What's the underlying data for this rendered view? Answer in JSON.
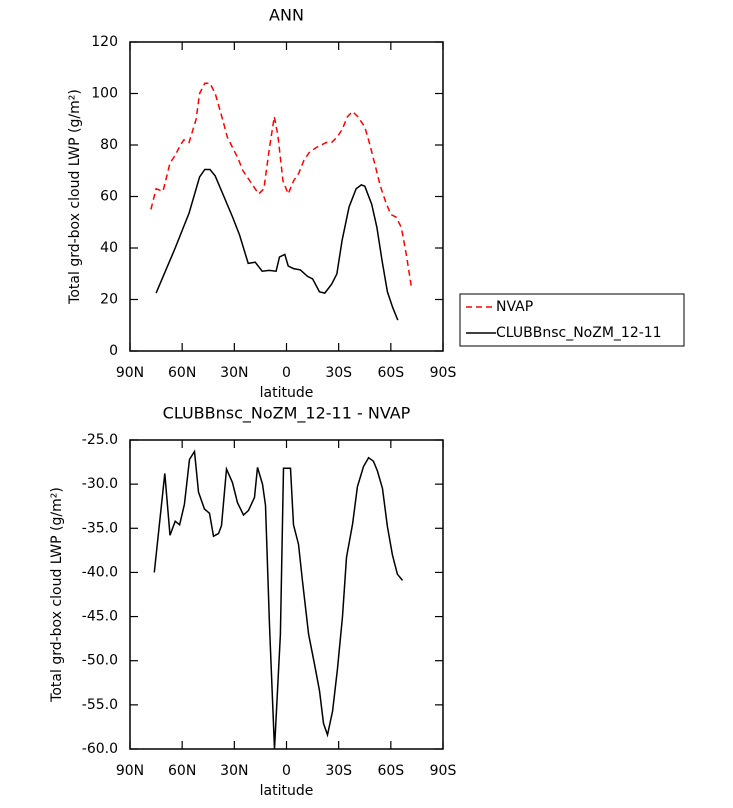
{
  "chart_data": [
    {
      "type": "line",
      "title": "ANN",
      "xlabel": "latitude",
      "ylabel": "Total grd-box cloud LWP (g/m²)",
      "xlim": [
        90,
        -90
      ],
      "xticks": [
        {
          "value": 90,
          "label": "90N"
        },
        {
          "value": 60,
          "label": "60N"
        },
        {
          "value": 30,
          "label": "30N"
        },
        0,
        {
          "value": -30,
          "label": "30S"
        },
        {
          "value": -60,
          "label": "60S"
        },
        {
          "value": -90,
          "label": "90S"
        }
      ],
      "ylim": [
        0,
        120
      ],
      "yticks": [
        0,
        20,
        40,
        60,
        80,
        100,
        120
      ],
      "legend": "right",
      "series": [
        {
          "name": "NVAP",
          "color": "#ff0000",
          "dash": true,
          "x": [
            78,
            75,
            71,
            67,
            64,
            61,
            59,
            56,
            52,
            50,
            47,
            44,
            41,
            38,
            34,
            31,
            28,
            25,
            22,
            18,
            16,
            13,
            10,
            7,
            5,
            2,
            -1,
            -4,
            -7,
            -10,
            -13,
            -17,
            -20,
            -23,
            -26,
            -29,
            -32,
            -35,
            -38,
            -41,
            -45,
            -48,
            -51,
            -54,
            -57,
            -60,
            -63,
            -66,
            -69,
            -72
          ],
          "values": [
            55,
            63,
            62,
            73,
            76,
            80,
            82,
            81,
            90,
            100,
            104,
            104,
            100,
            93,
            83,
            79,
            75,
            70,
            67,
            63,
            61,
            63,
            78,
            91,
            84,
            66,
            61,
            66,
            69,
            74,
            77,
            79,
            80,
            81,
            81,
            83,
            86,
            91,
            93,
            91,
            87,
            80,
            72,
            64,
            58,
            53,
            52,
            48,
            37,
            24
          ]
        },
        {
          "name": "CLUBBnsc_NoZM_12-11",
          "color": "#000000",
          "dash": false,
          "x": [
            75,
            64,
            56,
            50,
            47,
            44,
            41,
            36,
            31,
            27,
            22,
            18,
            14,
            10,
            6,
            4,
            1,
            -1,
            -4,
            -8,
            -12,
            -15,
            -19,
            -22,
            -26,
            -29,
            -32,
            -36,
            -40,
            -43,
            -45,
            -49,
            -52,
            -55,
            -58,
            -61,
            -64
          ],
          "values": [
            22.5,
            40,
            53.6,
            67.6,
            70.5,
            70.5,
            68,
            60,
            52,
            45,
            34,
            34.5,
            31,
            31.3,
            31,
            36.5,
            37.5,
            33,
            32,
            31.5,
            29,
            28,
            23,
            22.5,
            26,
            30,
            43,
            56,
            63,
            64.5,
            64,
            57,
            48,
            35,
            23,
            17,
            12
          ]
        }
      ]
    },
    {
      "type": "line",
      "title": "CLUBBnsc_NoZM_12-11 - NVAP",
      "xlabel": "latitude",
      "ylabel": "Total grd-box cloud LWP (g/m²)",
      "xlim": [
        90,
        -90
      ],
      "xticks": [
        {
          "value": 90,
          "label": "90N"
        },
        {
          "value": 60,
          "label": "60N"
        },
        {
          "value": 30,
          "label": "30N"
        },
        0,
        {
          "value": -30,
          "label": "30S"
        },
        {
          "value": -60,
          "label": "60S"
        },
        {
          "value": -90,
          "label": "90S"
        }
      ],
      "ylim": [
        -60,
        -25
      ],
      "yticks": [
        {
          "value": -60,
          "label": "-60.0"
        },
        {
          "value": -55,
          "label": "-55.0"
        },
        {
          "value": -50,
          "label": "-50.0"
        },
        {
          "value": -45,
          "label": "-45.0"
        },
        {
          "value": -40,
          "label": "-40.0"
        },
        {
          "value": -35,
          "label": "-35.0"
        },
        {
          "value": -30,
          "label": "-30.0"
        },
        {
          "value": -25,
          "label": "-25.0"
        }
      ],
      "series": [
        {
          "color": "#000000",
          "dash": false,
          "x": [
            76,
            70,
            67,
            64,
            61.5,
            58.7,
            55.8,
            52.9,
            50.6,
            47.2,
            44.3,
            42,
            39.1,
            37.4,
            34.5,
            31.1,
            28.2,
            24.7,
            21.9,
            18.4,
            16.7,
            13.8,
            12.1,
            9.8,
            6.9,
            3.5,
            1.7,
            -2.3,
            -4,
            -6.9,
            -9.2,
            -12.7,
            -16.1,
            -19,
            -21.3,
            -23.6,
            -26.5,
            -29.3,
            -32.2,
            -34.5,
            -38,
            -40.8,
            -44.3,
            -47.2,
            -50,
            -52.3,
            -55.2,
            -58,
            -60.9,
            -63.8,
            -66.7
          ],
          "values": [
            -40,
            -28.8,
            -35.8,
            -34.2,
            -34.6,
            -32.3,
            -27.2,
            -26.3,
            -30.9,
            -32.8,
            -33.3,
            -35.9,
            -35.6,
            -34.7,
            -28.3,
            -29.8,
            -32.1,
            -33.5,
            -33.0,
            -31.5,
            -28.1,
            -30,
            -32.4,
            -46,
            -60,
            -47,
            -28.2,
            -28.2,
            -34.6,
            -36.8,
            -41,
            -47,
            -50.4,
            -53.4,
            -57.1,
            -58.4,
            -55.7,
            -51,
            -45,
            -38.3,
            -34.5,
            -30.3,
            -28,
            -27,
            -27.4,
            -28.5,
            -30.5,
            -34.8,
            -38,
            -40.2,
            -40.9
          ]
        }
      ]
    }
  ]
}
